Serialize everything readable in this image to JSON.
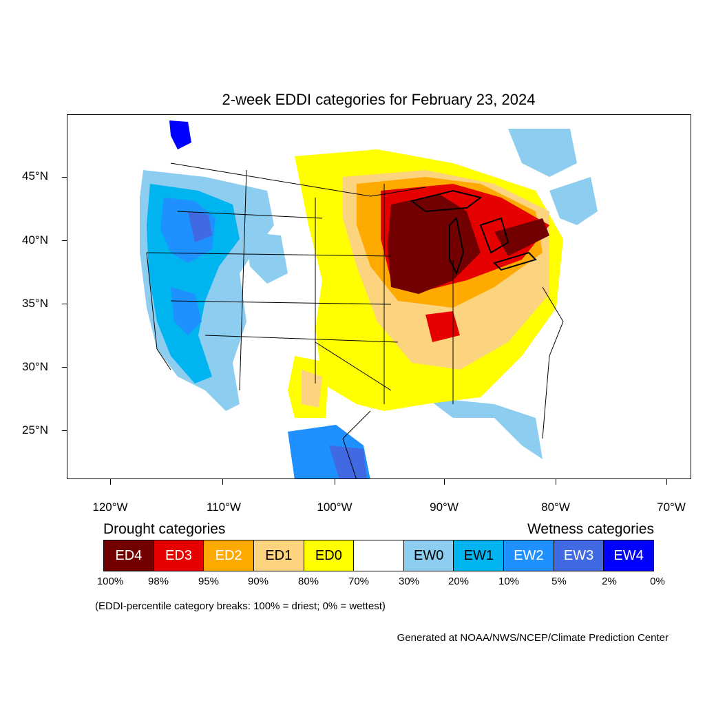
{
  "title": "2-week EDDI categories for February 23, 2024",
  "lat_labels": [
    "45°N",
    "40°N",
    "35°N",
    "30°N",
    "25°N"
  ],
  "lon_labels": [
    "120°W",
    "110°W",
    "100°W",
    "90°W",
    "80°W",
    "70°W"
  ],
  "legend": {
    "drought_heading": "Drought categories",
    "wetness_heading": "Wetness categories",
    "categories": [
      {
        "label": "ED4",
        "color": "#730000",
        "text_color": "#ffffff"
      },
      {
        "label": "ED3",
        "color": "#e60000",
        "text_color": "#ffffff"
      },
      {
        "label": "ED2",
        "color": "#ffaa00",
        "text_color": "#ffffff"
      },
      {
        "label": "ED1",
        "color": "#fcd37f",
        "text_color": "#000000"
      },
      {
        "label": "ED0",
        "color": "#ffff00",
        "text_color": "#000000"
      },
      {
        "label": "",
        "color": "#ffffff",
        "text_color": "#000000"
      },
      {
        "label": "EW0",
        "color": "#8ccdf0",
        "text_color": "#000000"
      },
      {
        "label": "EW1",
        "color": "#00b4f0",
        "text_color": "#000000"
      },
      {
        "label": "EW2",
        "color": "#1e90ff",
        "text_color": "#ffffff"
      },
      {
        "label": "EW3",
        "color": "#4169e1",
        "text_color": "#ffffff"
      },
      {
        "label": "EW4",
        "color": "#0000ff",
        "text_color": "#ffffff"
      }
    ],
    "breaks": [
      "100%",
      "98%",
      "95%",
      "90%",
      "80%",
      "70%",
      "30%",
      "20%",
      "10%",
      "5%",
      "2%",
      "0%"
    ]
  },
  "note": "(EDDI-percentile category breaks: 100% = driest; 0% = wettest)",
  "credit": "Generated at NOAA/NWS/NCEP/Climate Prediction Center"
}
